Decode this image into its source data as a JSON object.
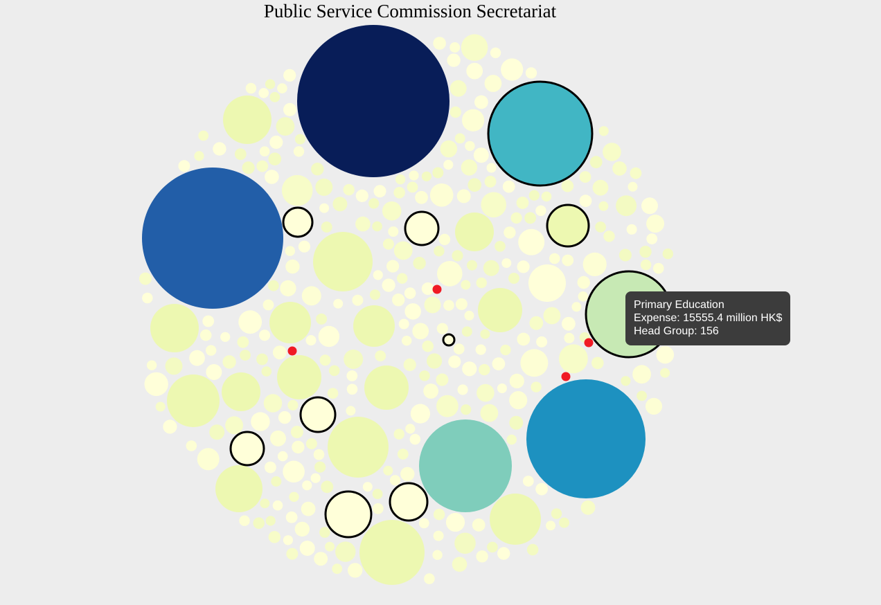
{
  "chart_data": {
    "type": "bubble",
    "title": "Public Service Commission Secretariat",
    "color_scale": [
      "#ffffd9",
      "#edf8b1",
      "#c7e9b4",
      "#7fcdbb",
      "#41b6c4",
      "#1d91c0",
      "#225ea8",
      "#081d58"
    ],
    "tooltip": {
      "name": "Primary Education",
      "expense_line": "Expense: 15555.4 million HK$",
      "group_line": "Head Group: 156",
      "expense": 15555.4,
      "unit": "million HK$",
      "head_group": 156
    }
  }
}
